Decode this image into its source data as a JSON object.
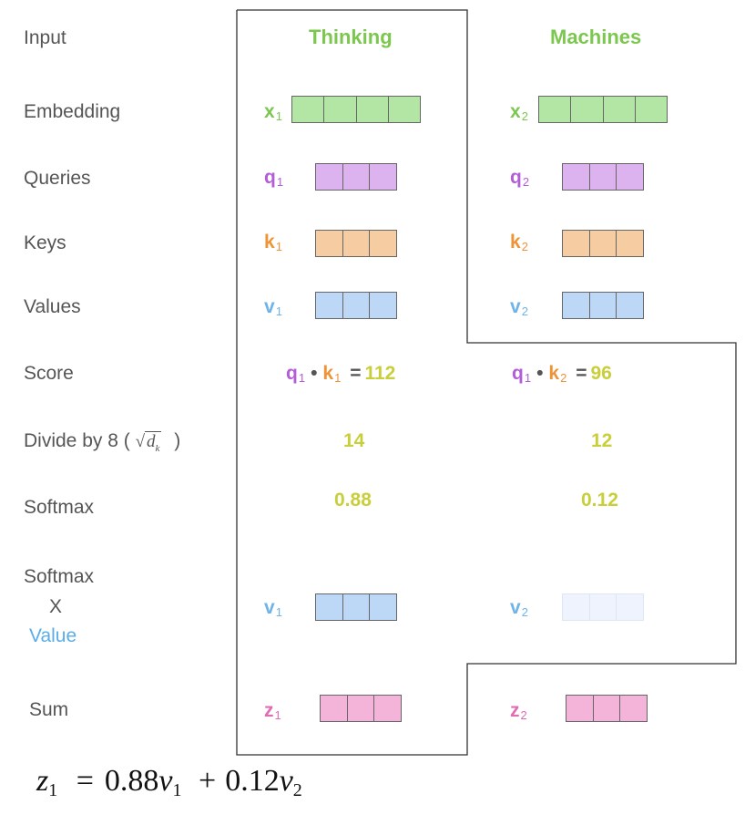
{
  "labels": {
    "input": "Input",
    "embedding": "Embedding",
    "queries": "Queries",
    "keys": "Keys",
    "values": "Values",
    "score": "Score",
    "divide": "Divide by 8 (",
    "divide_close": ")",
    "softmax": "Softmax",
    "softmax_value_line1": "Softmax",
    "softmax_value_line2": "X",
    "softmax_value_line3": "Value",
    "sum": "Sum"
  },
  "sqrt_symbol": {
    "radical": "√",
    "d": "d",
    "k": "k"
  },
  "words": {
    "word1": "Thinking",
    "word2": "Machines"
  },
  "symbols": {
    "x1": {
      "base": "x",
      "sub": "1"
    },
    "x2": {
      "base": "x",
      "sub": "2"
    },
    "q1": {
      "base": "q",
      "sub": "1"
    },
    "q2": {
      "base": "q",
      "sub": "2"
    },
    "k1": {
      "base": "k",
      "sub": "1"
    },
    "k2": {
      "base": "k",
      "sub": "2"
    },
    "v1": {
      "base": "v",
      "sub": "1"
    },
    "v2": {
      "base": "v",
      "sub": "2"
    },
    "z1": {
      "base": "z",
      "sub": "1"
    },
    "z2": {
      "base": "z",
      "sub": "2"
    }
  },
  "scores": {
    "s1": {
      "q": "q",
      "qsub": "1",
      "dot": "•",
      "k": "k",
      "ksub": "1",
      "eq": "=",
      "value": "112"
    },
    "s2": {
      "q": "q",
      "qsub": "1",
      "dot": "•",
      "k": "k",
      "ksub": "2",
      "eq": "=",
      "value": "96"
    }
  },
  "divided": {
    "d1": "14",
    "d2": "12"
  },
  "softmax_values": {
    "s1": "0.88",
    "s2": "0.12"
  },
  "formula": {
    "lhs": "z",
    "lhs_sub": "1",
    "eq": "=",
    "c1": "0.88",
    "v1": "v",
    "v1_sub": "1",
    "plus": "+",
    "c2": "0.12",
    "v2": "v",
    "v2_sub": "2"
  },
  "colors": {
    "embedding": "#b3e6a4",
    "query": "#dcb3ef",
    "key": "#f6cda3",
    "value": "#bdd8f7",
    "value_faded": "#eef3fd",
    "sum": "#f4b3d9",
    "x_symbol": "#7cc74f",
    "q_symbol": "#b35dd6",
    "k_symbol": "#ef9337",
    "v_symbol": "#6fb3e8",
    "z_symbol": "#e06cb3",
    "number": "#c9cf3a",
    "value_label": "#5aaee8"
  }
}
